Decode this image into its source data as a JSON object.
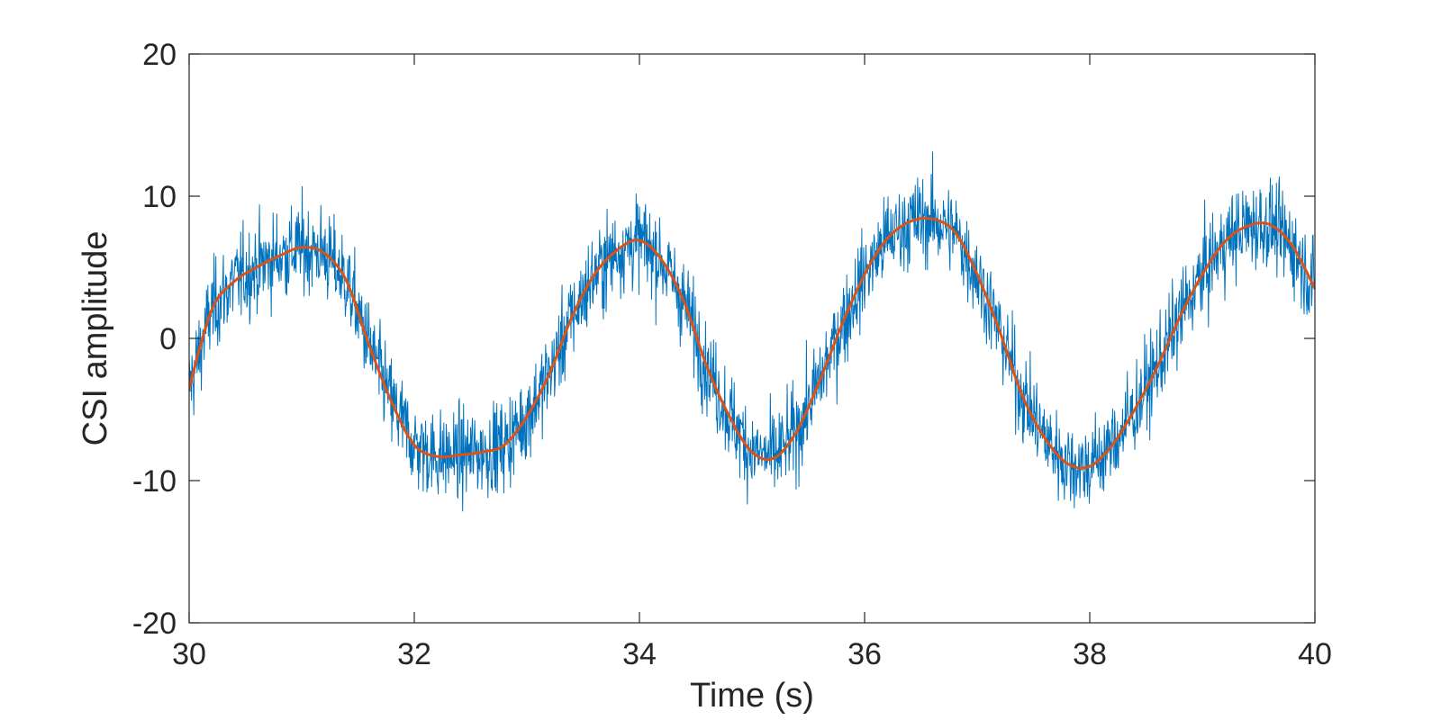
{
  "chart_data": {
    "type": "line",
    "title": "",
    "xlabel": "Time (s)",
    "ylabel": "CSI amplitude",
    "xlim": [
      30,
      40
    ],
    "ylim": [
      -20,
      20
    ],
    "x_ticks": [
      30,
      32,
      34,
      36,
      38,
      40
    ],
    "y_ticks": [
      -20,
      -10,
      0,
      10,
      20
    ],
    "x_tick_labels": [
      "30",
      "32",
      "34",
      "36",
      "38",
      "40"
    ],
    "y_tick_labels": [
      "-20",
      "-10",
      "0",
      "10",
      "20"
    ],
    "grid": false,
    "legend": "none",
    "series": [
      {
        "style": "raw noisy signal",
        "color": "#0072BD",
        "line_width": 1,
        "noise_amplitude": 4,
        "x": [
          30.0,
          30.2,
          30.4,
          30.6,
          30.8,
          31.0,
          31.2,
          31.4,
          31.6,
          31.8,
          32.0,
          32.2,
          32.4,
          32.6,
          32.8,
          33.0,
          33.2,
          33.4,
          33.6,
          33.8,
          34.0,
          34.2,
          34.4,
          34.6,
          34.8,
          35.0,
          35.2,
          35.4,
          35.6,
          35.8,
          36.0,
          36.2,
          36.4,
          36.6,
          36.8,
          37.0,
          37.2,
          37.4,
          37.6,
          37.8,
          38.0,
          38.2,
          38.4,
          38.6,
          38.8,
          39.0,
          39.2,
          39.4,
          39.6,
          39.8,
          40.0
        ],
        "y": [
          -3.5,
          2.0,
          4.0,
          5.0,
          5.8,
          6.4,
          6.0,
          4.0,
          -0.5,
          -4.5,
          -7.5,
          -8.3,
          -8.2,
          -8.0,
          -7.5,
          -5.5,
          -2.5,
          1.5,
          4.5,
          6.2,
          6.9,
          5.5,
          2.5,
          -2.0,
          -5.5,
          -8.0,
          -8.4,
          -6.5,
          -3.0,
          1.0,
          4.5,
          7.0,
          8.2,
          8.4,
          7.5,
          4.5,
          0.5,
          -4.0,
          -7.0,
          -8.8,
          -9.0,
          -7.5,
          -5.0,
          -2.0,
          1.5,
          4.5,
          6.8,
          7.9,
          8.0,
          6.5,
          3.5
        ]
      },
      {
        "style": "smoothed signal",
        "color": "#D95319",
        "line_width": 3,
        "x": [
          30.0,
          30.2,
          30.4,
          30.6,
          30.8,
          31.0,
          31.2,
          31.4,
          31.6,
          31.8,
          32.0,
          32.2,
          32.4,
          32.6,
          32.8,
          33.0,
          33.2,
          33.4,
          33.6,
          33.8,
          34.0,
          34.2,
          34.4,
          34.6,
          34.8,
          35.0,
          35.2,
          35.4,
          35.6,
          35.8,
          36.0,
          36.2,
          36.4,
          36.6,
          36.8,
          37.0,
          37.2,
          37.4,
          37.6,
          37.8,
          38.0,
          38.2,
          38.4,
          38.6,
          38.8,
          39.0,
          39.2,
          39.4,
          39.6,
          39.8,
          40.0
        ],
        "y": [
          -3.5,
          2.0,
          4.0,
          5.0,
          5.8,
          6.4,
          6.0,
          4.0,
          -0.5,
          -4.5,
          -7.5,
          -8.3,
          -8.2,
          -8.0,
          -7.5,
          -5.5,
          -2.5,
          1.5,
          4.5,
          6.2,
          6.9,
          5.5,
          2.5,
          -2.0,
          -5.5,
          -8.0,
          -8.4,
          -6.5,
          -3.0,
          1.0,
          4.5,
          7.0,
          8.2,
          8.4,
          7.5,
          4.5,
          0.5,
          -4.0,
          -7.0,
          -8.8,
          -9.0,
          -7.5,
          -5.0,
          -2.0,
          1.5,
          4.5,
          6.8,
          7.9,
          8.0,
          6.5,
          3.5
        ]
      }
    ]
  }
}
